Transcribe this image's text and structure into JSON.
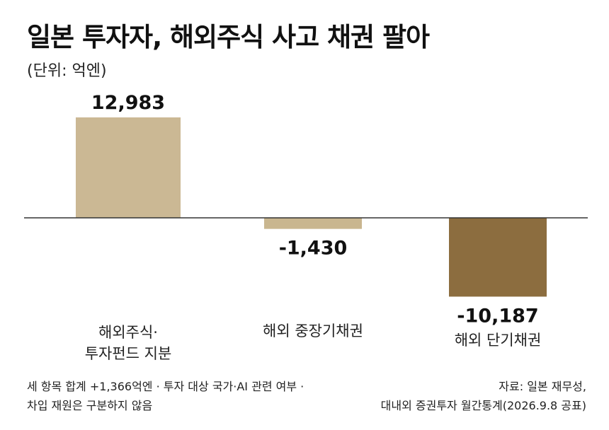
{
  "chart_data": {
    "type": "bar",
    "title": "일본 투자자, 해외주식 사고 채권 팔아",
    "unit": "(단위: 억엔)",
    "categories": [
      "해외주식·\n투자펀드 지분",
      "해외 중장기채권",
      "해외 단기채권"
    ],
    "values": [
      12983,
      -1430,
      -10187
    ],
    "value_labels": [
      "12,983",
      "-1,430",
      "-10,187"
    ],
    "colors": [
      "#cbb894",
      "#c9b68f",
      "#8c6d3f"
    ],
    "grid": false
  },
  "footnote": "세 항목 합계 +1,366억엔 · 투자 대상 국가·AI 관련 여부 ·\n차입 재원은 구분하지 않음",
  "source": "자료: 일본 재무성,\n대내외 증권투자 월간통계(2026.9.8 공표)"
}
